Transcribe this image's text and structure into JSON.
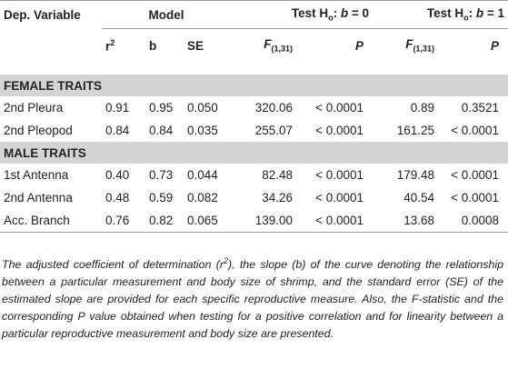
{
  "header": {
    "dep_variable": "Dep. Variable",
    "model": "Model",
    "test_b0": [
      "Test H",
      "o",
      ": ",
      "b",
      " = 0"
    ],
    "test_b1": [
      "Test H",
      "o",
      ": ",
      "b",
      " = 1"
    ]
  },
  "columns": [
    [
      "r",
      "2"
    ],
    [
      "b"
    ],
    [
      "SE"
    ],
    [
      "F",
      "(1,31)"
    ],
    [
      "P"
    ],
    [
      "F",
      "(1,31)"
    ],
    [
      "P"
    ]
  ],
  "sections": [
    {
      "title": "FEMALE TRAITS",
      "rows": [
        [
          "2nd Pleura",
          "0.91",
          "0.95",
          "0.050",
          "320.06",
          "< 0.0001",
          "0.89",
          "0.3521"
        ],
        [
          "2nd Pleopod",
          "0.84",
          "0.84",
          "0.035",
          "255.07",
          "< 0.0001",
          "161.25",
          "< 0.0001"
        ]
      ]
    },
    {
      "title": "MALE TRAITS",
      "rows": [
        [
          "1st Antenna",
          "0.40",
          "0.73",
          "0.044",
          "82.48",
          "< 0.0001",
          "179.48",
          "< 0.0001"
        ],
        [
          "2nd Antenna",
          "0.48",
          "0.59",
          "0.082",
          "34.26",
          "< 0.0001",
          "40.54",
          "< 0.0001"
        ],
        [
          "Acc. Branch",
          "0.76",
          "0.82",
          "0.065",
          "139.00",
          "< 0.0001",
          "13.68",
          "0.0008"
        ]
      ]
    }
  ],
  "caption": [
    "The adjusted coefficient of determination (r",
    "2",
    "), the slope (b) of the curve denoting the relationship between a particular measurement and body size of shrimp, and the standard error (SE) of the estimated slope are provided for each specific reproductive measure. Also, the F-statistic and the corresponding P value obtained when testing for a positive correlation and for linearity between a particular reproductive measurement and body size are presented."
  ]
}
